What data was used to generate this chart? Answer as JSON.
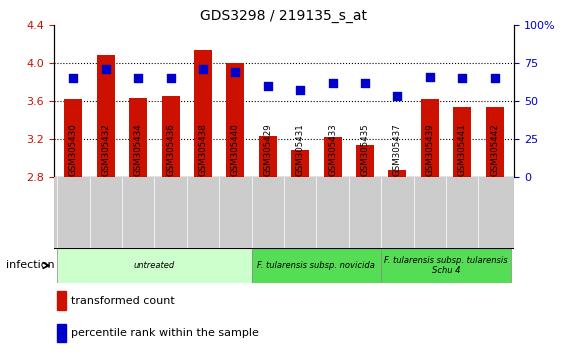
{
  "title": "GDS3298 / 219135_s_at",
  "samples": [
    "GSM305430",
    "GSM305432",
    "GSM305434",
    "GSM305436",
    "GSM305438",
    "GSM305440",
    "GSM305429",
    "GSM305431",
    "GSM305433",
    "GSM305435",
    "GSM305437",
    "GSM305439",
    "GSM305441",
    "GSM305442"
  ],
  "transformed_count": [
    3.62,
    4.08,
    3.63,
    3.65,
    4.14,
    4.0,
    3.23,
    3.08,
    3.22,
    3.14,
    2.87,
    3.62,
    3.54,
    3.54
  ],
  "percentile_rank": [
    65,
    71,
    65,
    65,
    71,
    69,
    60,
    57,
    62,
    62,
    53,
    66,
    65,
    65
  ],
  "ylim_left": [
    2.8,
    4.4
  ],
  "ylim_right": [
    0,
    100
  ],
  "yticks_left": [
    2.8,
    3.2,
    3.6,
    4.0,
    4.4
  ],
  "yticks_right": [
    0,
    25,
    50,
    75,
    100
  ],
  "bar_color": "#cc1100",
  "dot_color": "#0000cc",
  "groups": [
    {
      "label": "untreated",
      "start": 0,
      "end": 6,
      "color": "#ccffcc"
    },
    {
      "label": "F. tularensis subsp. novicida",
      "start": 6,
      "end": 10,
      "color": "#55dd55"
    },
    {
      "label": "F. tularensis subsp. tularensis\nSchu 4",
      "start": 10,
      "end": 14,
      "color": "#55dd55"
    }
  ],
  "infection_label": "infection",
  "legend_items": [
    {
      "label": "transformed count",
      "color": "#cc1100"
    },
    {
      "label": "percentile rank within the sample",
      "color": "#0000cc"
    }
  ],
  "bar_width": 0.55,
  "dot_size": 30,
  "grid_yticks": [
    3.2,
    3.6,
    4.0
  ]
}
